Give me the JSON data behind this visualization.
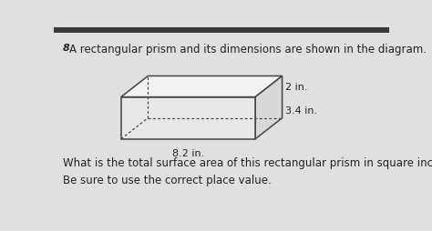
{
  "title_number": "8",
  "title_text": "A rectangular prism and its dimensions are shown in the diagram.",
  "question_text": "What is the total surface area of this rectangular prism in square inches?",
  "note_text": "Be sure to use the correct place value.",
  "dim_length": "8.2 in.",
  "dim_width": "3.4 in.",
  "dim_height": "2 in.",
  "bg_color": "#e0e0e0",
  "top_bar_color": "#3a3a3a",
  "top_bar_height": 8,
  "text_color": "#222222",
  "edge_color": "#444444",
  "face_front_color": "#e8e8e8",
  "face_top_color": "#f2f2f2",
  "face_right_color": "#d8d8d8",
  "font_size_title": 8.5,
  "font_size_number": 8.0,
  "font_size_dims": 8.0,
  "font_size_question": 8.5,
  "prism_fx0": 95,
  "prism_fy0": 160,
  "prism_pw": 190,
  "prism_ph": 60,
  "prism_pdx": 38,
  "prism_pdy": -30
}
